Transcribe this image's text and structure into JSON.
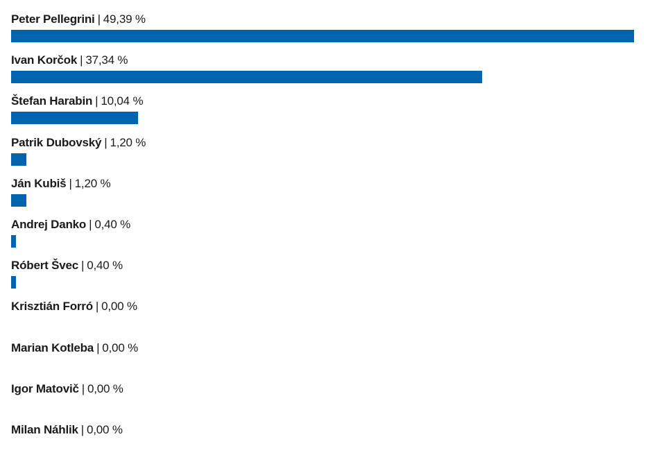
{
  "chart_data": {
    "type": "bar",
    "orientation": "horizontal",
    "bar_color": "#0063ad",
    "xlim": [
      0,
      49.39
    ],
    "categories": [
      "Peter Pellegrini",
      "Ivan Korčok",
      "Štefan Harabin",
      "Patrik Dubovský",
      "Ján Kubiš",
      "Andrej Danko",
      "Róbert Švec",
      "Krisztián Forró",
      "Marian Kotleba",
      "Igor Matovič",
      "Milan Náhlik"
    ],
    "values": [
      49.39,
      37.34,
      10.04,
      1.2,
      1.2,
      0.4,
      0.4,
      0.0,
      0.0,
      0.0,
      0.0
    ],
    "value_labels": [
      "49,39 %",
      "37,34 %",
      "10,04 %",
      "1,20 %",
      "1,20 %",
      "0,40 %",
      "0,40 %",
      "0,00 %",
      "0,00 %",
      "0,00 %",
      "0,00 %"
    ],
    "separator": "|"
  }
}
